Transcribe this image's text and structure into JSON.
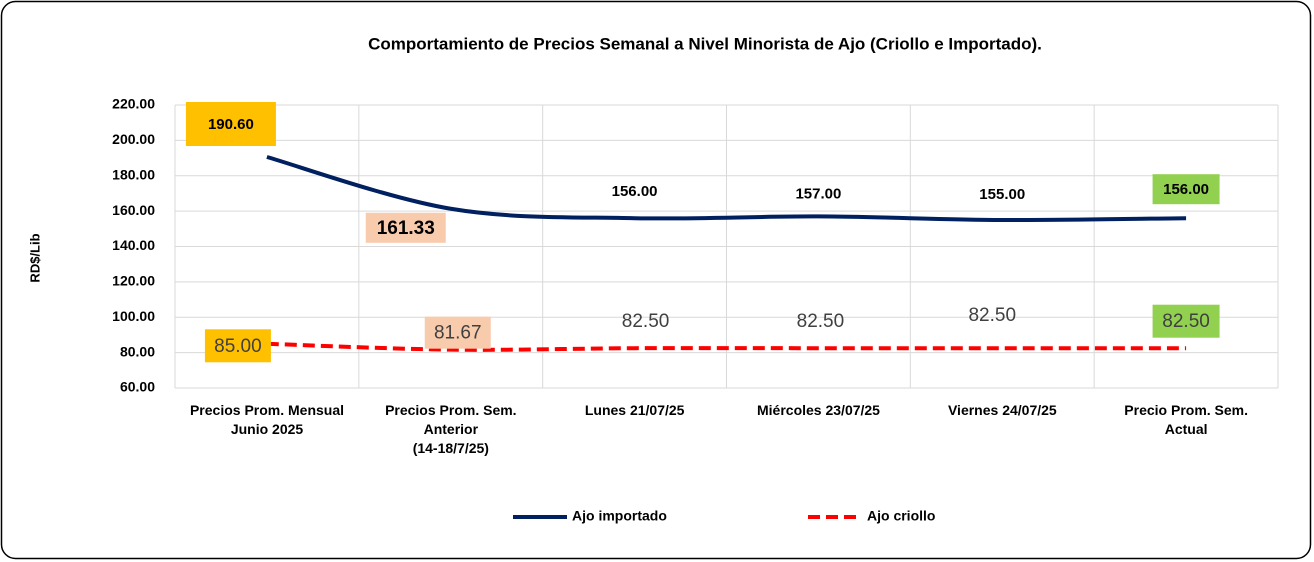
{
  "chart_data": {
    "type": "line",
    "title": "Comportamiento de Precios Semanal a Nivel Minorista de Ajo (Criollo e Importado).",
    "y_label": "RD$/Lib",
    "categories": [
      "Precios Prom. Mensual\nJunio 2025",
      "Precios Prom. Sem.\nAnterior\n(14-18/7/25)",
      "Lunes  21/07/25",
      "Miércoles 23/07/25",
      "Viernes 24/07/25",
      "Precio Prom. Sem.\nActual"
    ],
    "series": [
      {
        "name": "Ajo importado",
        "color": "#002060",
        "dash": false,
        "values": [
          190.6,
          161.33,
          156,
          157,
          155,
          156
        ],
        "value_labels": [
          "190.60",
          "161.33",
          "156.00",
          "157.00",
          "155.00",
          "156.00"
        ],
        "label_backgrounds": [
          "#ffc000",
          "#f8cbad",
          null,
          null,
          null,
          "#92d050"
        ]
      },
      {
        "name": "Ajo criollo",
        "color": "#ff0000",
        "dash": true,
        "values": [
          85,
          81.67,
          82.5,
          82.5,
          82.5,
          82.5
        ],
        "value_labels": [
          "85.00",
          "81.67",
          "82.50",
          "82.50",
          "82.50",
          "82.50"
        ],
        "label_backgrounds": [
          "#ffc000",
          "#f8cbad",
          null,
          null,
          null,
          "#92d050"
        ]
      }
    ],
    "ylim": [
      60,
      220
    ],
    "yticks": [
      {
        "value": 60,
        "label": "60.00"
      },
      {
        "value": 80,
        "label": "80.00"
      },
      {
        "value": 100,
        "label": "100.00"
      },
      {
        "value": 120,
        "label": "120.00"
      },
      {
        "value": 140,
        "label": "140.00"
      },
      {
        "value": 160,
        "label": "160.00"
      },
      {
        "value": 180,
        "label": "180.00"
      },
      {
        "value": 200,
        "label": "200.00"
      },
      {
        "value": 220,
        "label": "220.00"
      }
    ],
    "grid": true,
    "legend": "bottom"
  }
}
